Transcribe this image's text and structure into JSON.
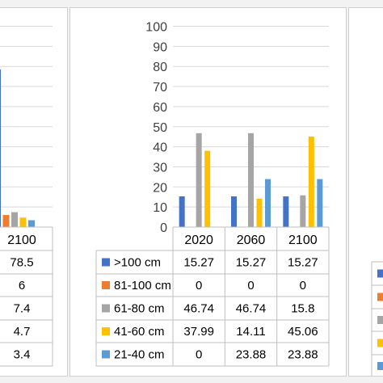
{
  "chart_data": [
    {
      "type": "bar",
      "note_partial": "left panel, partially visible",
      "categories": [
        "2100"
      ],
      "ylim": [
        0,
        100
      ],
      "series": [
        {
          "name": "",
          "color": "#4472c4",
          "values": [
            78.5
          ]
        },
        {
          "name": "",
          "color": "#ed7d31",
          "values": [
            6
          ]
        },
        {
          "name": "",
          "color": "#a5a5a5",
          "values": [
            7.4
          ]
        },
        {
          "name": "",
          "color": "#ffc000",
          "values": [
            4.7
          ]
        },
        {
          "name": "",
          "color": "#5b9bd5",
          "values": [
            3.4
          ]
        }
      ]
    },
    {
      "type": "bar",
      "categories": [
        "2020",
        "2060",
        "2100"
      ],
      "yticks": [
        "0",
        "10",
        "20",
        "30",
        "40",
        "50",
        "60",
        "70",
        "80",
        "90",
        "100"
      ],
      "ylim": [
        0,
        100
      ],
      "series": [
        {
          "name": ">100 cm",
          "color": "#4472c4",
          "values": [
            15.27,
            15.27,
            15.27
          ],
          "labels": [
            "15.27",
            "15.27",
            "15.27"
          ]
        },
        {
          "name": "81-100 cm",
          "color": "#ed7d31",
          "values": [
            0,
            0,
            0
          ],
          "labels": [
            "0",
            "0",
            "0"
          ]
        },
        {
          "name": "61-80 cm",
          "color": "#a5a5a5",
          "values": [
            46.74,
            46.74,
            15.8
          ],
          "labels": [
            "46.74",
            "46.74",
            "15.8"
          ]
        },
        {
          "name": "41-60 cm",
          "color": "#ffc000",
          "values": [
            37.99,
            14.11,
            45.06
          ],
          "labels": [
            "37.99",
            "14.11",
            "45.06"
          ]
        },
        {
          "name": "21-40 cm",
          "color": "#5b9bd5",
          "values": [
            0,
            23.88,
            23.88
          ],
          "labels": [
            "0",
            "23.88",
            "23.88"
          ]
        }
      ]
    },
    {
      "type": "bar",
      "note_partial": "right panel, only legend keys visible",
      "series": [
        {
          "name": "",
          "color": "#4472c4"
        },
        {
          "name": "",
          "color": "#ed7d31"
        },
        {
          "name": "",
          "color": "#a5a5a5"
        },
        {
          "name": "",
          "color": "#ffc000"
        },
        {
          "name": "",
          "color": "#5b9bd5"
        }
      ]
    }
  ],
  "left_table": {
    "header": "2100",
    "values": [
      "78.5",
      "6",
      "7.4",
      "4.7",
      "3.4"
    ]
  },
  "colors": {
    "grid": "#d9d9d9",
    "table_border": "#bfbfbf"
  }
}
